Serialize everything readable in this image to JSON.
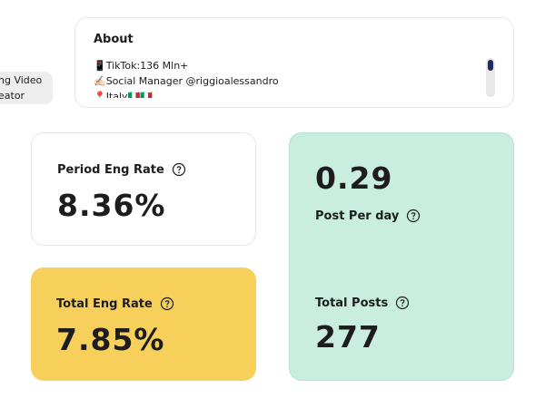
{
  "profile_tags": {
    "lines": [
      "ng Video",
      "eator"
    ]
  },
  "about": {
    "title": "About",
    "lines": [
      "📱TikTok:136 Mln+",
      "✍🏻Social Manager @riggioalessandro",
      "📍Italy🇮🇹🇮🇹"
    ]
  },
  "stats": {
    "period_eng_rate": {
      "label": "Period Eng Rate",
      "value": "8.36%"
    },
    "total_eng_rate": {
      "label": "Total Eng Rate",
      "value": "7.85%"
    },
    "post_per_day": {
      "label": "Post Per day",
      "value": "0.29"
    },
    "total_posts": {
      "label": "Total Posts",
      "value": "277"
    }
  }
}
